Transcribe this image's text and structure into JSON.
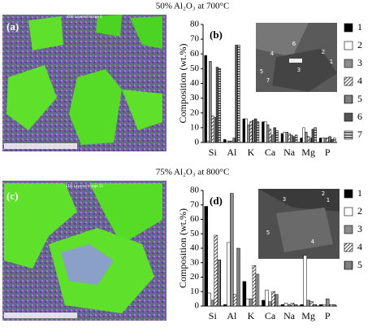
{
  "chart_data": [
    {
      "type": "bar",
      "title": "50% Al₂O₃ at 700°C",
      "image_panel": "(a)",
      "image_caption": "EDS Layered Image 9",
      "panel": "(b)",
      "ylabel": "Composition (wt.%)",
      "categories": [
        "Si",
        "Al",
        "K",
        "Ca",
        "Na",
        "Mg",
        "P"
      ],
      "ylim": [
        0,
        80
      ],
      "yticks": [
        0,
        10,
        20,
        30,
        40,
        50,
        60,
        70,
        80
      ],
      "inset_labels": [
        "1",
        "2",
        "3",
        "4",
        "5",
        "6",
        "7"
      ],
      "series": [
        {
          "name": "1",
          "color": "#000000",
          "pattern": "solid",
          "values": [
            59,
            2,
            16,
            14,
            6,
            3,
            3
          ]
        },
        {
          "name": "2",
          "color": "#ffffff",
          "pattern": "solid",
          "values": [
            1,
            1,
            16,
            14,
            7,
            10,
            3
          ]
        },
        {
          "name": "3",
          "color": "#8c8c8c",
          "pattern": "solid",
          "values": [
            55,
            1,
            12,
            12,
            7,
            7,
            3
          ]
        },
        {
          "name": "4",
          "color": "#000000",
          "pattern": "diagonal",
          "values": [
            18,
            1,
            14,
            9,
            6,
            4,
            3
          ]
        },
        {
          "name": "5",
          "color": "#000000",
          "pattern": "vertical",
          "values": [
            17,
            3,
            15,
            5,
            5,
            3,
            4
          ]
        },
        {
          "name": "6",
          "color": "#555555",
          "pattern": "solid",
          "values": [
            51,
            66,
            16,
            10,
            4,
            9,
            2
          ]
        },
        {
          "name": "7",
          "color": "#000000",
          "pattern": "horizontal",
          "values": [
            50,
            66,
            14,
            8,
            5,
            10,
            3
          ]
        }
      ]
    },
    {
      "type": "bar",
      "title": "75% Al₂O₃ at 800°C",
      "image_panel": "(c)",
      "image_caption": "EDS Layered Image 15",
      "panel": "(d)",
      "ylabel": "Composition (wt.%)",
      "categories": [
        "Si",
        "Al",
        "K",
        "Ca",
        "Na",
        "Mg",
        "P"
      ],
      "ylim": [
        0,
        80
      ],
      "yticks": [
        0,
        10,
        20,
        30,
        40,
        50,
        60,
        70,
        80
      ],
      "inset_labels": [
        "1",
        "2",
        "3",
        "4",
        "5"
      ],
      "series": [
        {
          "name": "1",
          "color": "#000000",
          "pattern": "solid",
          "values": [
            69,
            1,
            17,
            4,
            1,
            1,
            1
          ]
        },
        {
          "name": "2",
          "color": "#ffffff",
          "pattern": "solid",
          "values": [
            9,
            44,
            5,
            11,
            2,
            35,
            1
          ]
        },
        {
          "name": "3",
          "color": "#8c8c8c",
          "pattern": "solid",
          "values": [
            4,
            78,
            5,
            3,
            1,
            4,
            5
          ]
        },
        {
          "name": "4",
          "color": "#000000",
          "pattern": "diagonal",
          "values": [
            49,
            8,
            28,
            10,
            2,
            3,
            1
          ]
        },
        {
          "name": "5",
          "color": "#000000",
          "pattern": "vertical",
          "values": [
            32,
            40,
            22,
            8,
            1,
            1,
            1
          ]
        }
      ]
    }
  ]
}
